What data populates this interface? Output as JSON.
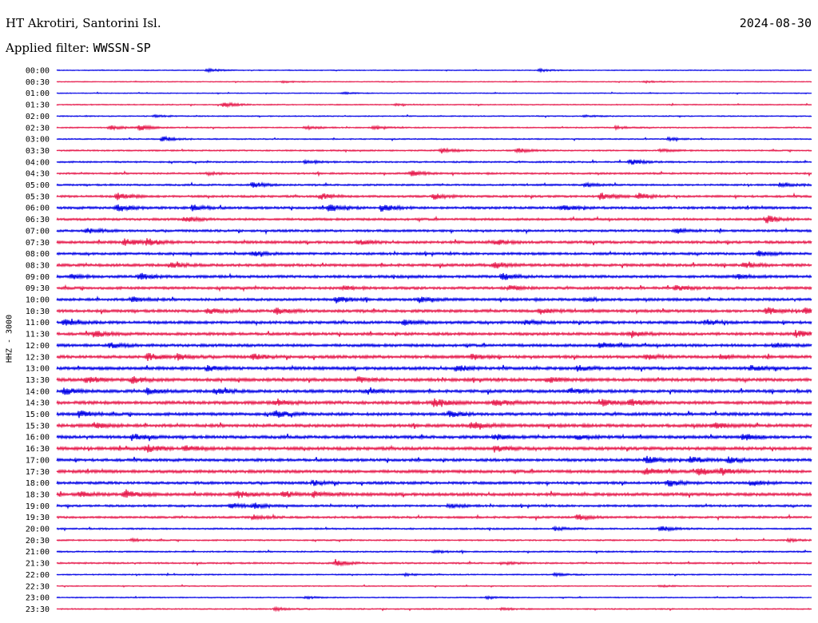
{
  "header": {
    "station": "HT Akrotiri, Santorini Isl.",
    "date": "2024-08-30",
    "filter_label": "Applied filter:",
    "filter_name": "WWSSN-SP"
  },
  "channel_label": "HHZ - 3000",
  "chart_data": {
    "type": "helicorder",
    "line_duration_min": 30,
    "colors": [
      "#0000e6",
      "#e6194b"
    ],
    "traces": [
      {
        "time": "00:00",
        "noise": 0.5,
        "events": [
          [
            0.2,
            2.0
          ],
          [
            0.64,
            1.6
          ]
        ]
      },
      {
        "time": "00:30",
        "noise": 0.5,
        "events": [
          [
            0.3,
            1.2
          ],
          [
            0.78,
            1.0
          ]
        ]
      },
      {
        "time": "01:00",
        "noise": 0.5,
        "events": [
          [
            0.38,
            1.0
          ]
        ]
      },
      {
        "time": "01:30",
        "noise": 0.6,
        "events": [
          [
            0.22,
            3.0
          ],
          [
            0.45,
            1.0
          ]
        ]
      },
      {
        "time": "02:00",
        "noise": 0.6,
        "events": [
          [
            0.13,
            1.5
          ],
          [
            0.7,
            1.0
          ]
        ]
      },
      {
        "time": "02:30",
        "noise": 0.7,
        "events": [
          [
            0.07,
            2.6
          ],
          [
            0.11,
            3.0
          ],
          [
            0.33,
            2.0
          ],
          [
            0.42,
            1.5
          ],
          [
            0.74,
            1.5
          ]
        ]
      },
      {
        "time": "03:00",
        "noise": 0.7,
        "events": [
          [
            0.14,
            3.2
          ],
          [
            0.81,
            1.5
          ]
        ]
      },
      {
        "time": "03:30",
        "noise": 0.8,
        "events": [
          [
            0.51,
            3.0
          ],
          [
            0.61,
            2.6
          ],
          [
            0.8,
            1.5
          ]
        ]
      },
      {
        "time": "04:00",
        "noise": 0.9,
        "events": [
          [
            0.33,
            2.2
          ],
          [
            0.76,
            3.2
          ]
        ]
      },
      {
        "time": "04:30",
        "noise": 1.0,
        "events": [
          [
            0.47,
            3.2
          ],
          [
            0.2,
            1.5
          ]
        ]
      },
      {
        "time": "05:00",
        "noise": 1.0,
        "events": [
          [
            0.26,
            3.2
          ],
          [
            0.7,
            2.0
          ],
          [
            0.96,
            2.0
          ]
        ]
      },
      {
        "time": "05:30",
        "noise": 1.2,
        "events": [
          [
            0.08,
            4.0
          ],
          [
            0.35,
            3.6
          ],
          [
            0.5,
            3.2
          ],
          [
            0.72,
            4.2
          ],
          [
            0.77,
            3.6
          ]
        ]
      },
      {
        "time": "06:00",
        "noise": 1.4,
        "events": [
          [
            0.08,
            4.4
          ],
          [
            0.18,
            3.6
          ],
          [
            0.36,
            4.6
          ],
          [
            0.43,
            4.0
          ],
          [
            0.67,
            3.0
          ]
        ]
      },
      {
        "time": "06:30",
        "noise": 1.3,
        "events": [
          [
            0.17,
            3.2
          ],
          [
            0.94,
            4.6
          ]
        ]
      },
      {
        "time": "07:00",
        "noise": 1.3,
        "events": [
          [
            0.04,
            3.0
          ],
          [
            0.82,
            3.0
          ]
        ]
      },
      {
        "time": "07:30",
        "noise": 1.5,
        "events": [
          [
            0.09,
            3.8
          ],
          [
            0.12,
            4.2
          ],
          [
            0.58,
            3.0
          ],
          [
            0.4,
            2.5
          ]
        ]
      },
      {
        "time": "08:00",
        "noise": 1.4,
        "events": [
          [
            0.26,
            2.5
          ],
          [
            0.93,
            3.0
          ]
        ]
      },
      {
        "time": "08:30",
        "noise": 1.6,
        "events": [
          [
            0.15,
            3.0
          ],
          [
            0.58,
            3.4
          ],
          [
            0.91,
            3.0
          ]
        ]
      },
      {
        "time": "09:00",
        "noise": 1.5,
        "events": [
          [
            0.02,
            3.0
          ],
          [
            0.11,
            3.8
          ],
          [
            0.59,
            3.8
          ],
          [
            0.9,
            2.5
          ]
        ]
      },
      {
        "time": "09:30",
        "noise": 1.5,
        "events": [
          [
            0.38,
            2.5
          ],
          [
            0.6,
            2.5
          ],
          [
            0.82,
            2.5
          ]
        ]
      },
      {
        "time": "10:00",
        "noise": 1.5,
        "events": [
          [
            0.1,
            3.0
          ],
          [
            0.37,
            4.6
          ],
          [
            0.48,
            3.2
          ],
          [
            0.7,
            2.0
          ]
        ]
      },
      {
        "time": "10:30",
        "noise": 1.6,
        "events": [
          [
            0.2,
            3.0
          ],
          [
            0.29,
            3.8
          ],
          [
            0.64,
            3.4
          ],
          [
            0.94,
            3.8
          ],
          [
            0.99,
            3.2
          ]
        ]
      },
      {
        "time": "11:00",
        "noise": 1.6,
        "events": [
          [
            0.01,
            3.0
          ],
          [
            0.46,
            3.0
          ],
          [
            0.62,
            2.5
          ],
          [
            0.86,
            3.0
          ]
        ]
      },
      {
        "time": "11:30",
        "noise": 1.6,
        "events": [
          [
            0.05,
            3.8
          ],
          [
            0.76,
            3.4
          ],
          [
            0.98,
            3.4
          ]
        ]
      },
      {
        "time": "12:00",
        "noise": 1.6,
        "events": [
          [
            0.07,
            3.0
          ],
          [
            0.72,
            3.8
          ],
          [
            0.95,
            2.5
          ]
        ]
      },
      {
        "time": "12:30",
        "noise": 1.7,
        "events": [
          [
            0.12,
            3.8
          ],
          [
            0.16,
            3.4
          ],
          [
            0.26,
            3.0
          ],
          [
            0.55,
            3.0
          ],
          [
            0.78,
            3.0
          ],
          [
            0.88,
            2.5
          ]
        ]
      },
      {
        "time": "13:00",
        "noise": 1.7,
        "events": [
          [
            0.2,
            3.0
          ],
          [
            0.53,
            3.4
          ],
          [
            0.69,
            3.0
          ],
          [
            0.92,
            3.0
          ]
        ]
      },
      {
        "time": "13:30",
        "noise": 1.8,
        "events": [
          [
            0.04,
            3.8
          ],
          [
            0.1,
            3.8
          ],
          [
            0.4,
            3.0
          ],
          [
            0.65,
            3.0
          ]
        ]
      },
      {
        "time": "14:00",
        "noise": 1.7,
        "events": [
          [
            0.01,
            3.8
          ],
          [
            0.12,
            3.4
          ],
          [
            0.21,
            3.4
          ],
          [
            0.41,
            3.0
          ],
          [
            0.68,
            3.0
          ]
        ]
      },
      {
        "time": "14:30",
        "noise": 1.8,
        "events": [
          [
            0.29,
            3.0
          ],
          [
            0.5,
            4.2
          ],
          [
            0.58,
            4.6
          ],
          [
            0.72,
            3.8
          ],
          [
            0.76,
            3.8
          ]
        ]
      },
      {
        "time": "15:00",
        "noise": 1.7,
        "events": [
          [
            0.03,
            3.8
          ],
          [
            0.29,
            3.8
          ],
          [
            0.52,
            3.0
          ]
        ]
      },
      {
        "time": "15:30",
        "noise": 1.8,
        "events": [
          [
            0.05,
            3.0
          ],
          [
            0.55,
            4.2
          ],
          [
            0.87,
            3.0
          ]
        ]
      },
      {
        "time": "16:00",
        "noise": 1.7,
        "events": [
          [
            0.1,
            3.8
          ],
          [
            0.58,
            3.0
          ],
          [
            0.69,
            3.0
          ],
          [
            0.91,
            3.8
          ]
        ]
      },
      {
        "time": "16:30",
        "noise": 1.8,
        "events": [
          [
            0.12,
            3.8
          ],
          [
            0.17,
            3.4
          ],
          [
            0.58,
            3.4
          ]
        ]
      },
      {
        "time": "17:00",
        "noise": 1.6,
        "events": [
          [
            0.78,
            4.2
          ],
          [
            0.84,
            4.0
          ],
          [
            0.89,
            3.4
          ]
        ]
      },
      {
        "time": "17:30",
        "noise": 1.7,
        "events": [
          [
            0.78,
            4.6
          ],
          [
            0.85,
            4.2
          ],
          [
            0.88,
            3.8
          ]
        ]
      },
      {
        "time": "18:00",
        "noise": 1.5,
        "events": [
          [
            0.34,
            2.5
          ],
          [
            0.81,
            4.2
          ],
          [
            0.92,
            3.0
          ]
        ]
      },
      {
        "time": "18:30",
        "noise": 1.7,
        "events": [
          [
            0.03,
            3.0
          ],
          [
            0.09,
            4.6
          ],
          [
            0.24,
            3.8
          ],
          [
            0.3,
            3.4
          ],
          [
            0.34,
            3.0
          ]
        ]
      },
      {
        "time": "19:00",
        "noise": 1.2,
        "events": [
          [
            0.23,
            3.4
          ],
          [
            0.26,
            3.0
          ],
          [
            0.52,
            2.5
          ]
        ]
      },
      {
        "time": "19:30",
        "noise": 1.2,
        "events": [
          [
            0.26,
            2.5
          ],
          [
            0.69,
            3.0
          ]
        ]
      },
      {
        "time": "20:00",
        "noise": 0.9,
        "events": [
          [
            0.66,
            2.0
          ],
          [
            0.8,
            3.0
          ]
        ]
      },
      {
        "time": "20:30",
        "noise": 0.8,
        "events": [
          [
            0.1,
            1.5
          ],
          [
            0.97,
            1.5
          ]
        ]
      },
      {
        "time": "21:00",
        "noise": 0.8,
        "events": [
          [
            0.5,
            1.5
          ]
        ]
      },
      {
        "time": "21:30",
        "noise": 0.9,
        "events": [
          [
            0.37,
            3.4
          ],
          [
            0.59,
            1.5
          ]
        ]
      },
      {
        "time": "22:00",
        "noise": 0.7,
        "events": [
          [
            0.46,
            1.2
          ],
          [
            0.66,
            1.5
          ]
        ]
      },
      {
        "time": "22:30",
        "noise": 0.6,
        "events": [
          [
            0.8,
            1.0
          ]
        ]
      },
      {
        "time": "23:00",
        "noise": 0.6,
        "events": [
          [
            0.33,
            1.2
          ],
          [
            0.57,
            1.5
          ]
        ]
      },
      {
        "time": "23:30",
        "noise": 0.7,
        "events": [
          [
            0.29,
            2.0
          ],
          [
            0.59,
            1.2
          ]
        ]
      }
    ]
  }
}
